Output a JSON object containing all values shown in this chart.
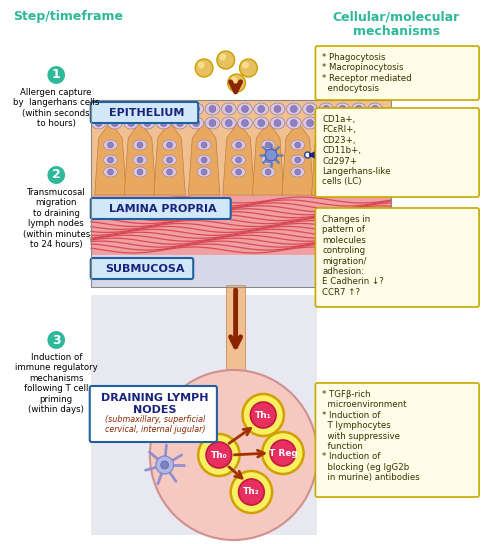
{
  "title_left": "Step/timeframe",
  "title_right": "Cellular/molecular\nmechanisms",
  "title_color": "#2EB89A",
  "bg_color": "#FFFFFF",
  "arrow_color": "#8B2500",
  "blue_arrow_color": "#1A237E",
  "step_circle_color": "#2EB89A",
  "box_bg": "#FFFDE7",
  "box_border": "#C8A800",
  "label_epithelium": "EPITHELIUM",
  "label_lamina": "LAMINA PROPRIA",
  "label_submucosa": "SUBMUCOSA",
  "label_draining": "DRAINING LYMPH\nNODES",
  "label_draining_sub": "(submaxillary, superficial\ncervical, internal jugular)",
  "step1_text": "Allergen capture\nby  langerhans cells\n(within seconds\nto hours)",
  "step2_text": "Transmucosal\nmigration\nto draining\nlymph nodes\n(within minutes\nto 24 hours)",
  "step3_text": "Induction of\nimmune regulatory\nmechanisms\nfollowing T cell\npriming\n(within days)",
  "box1_text": "* Phagocytosis\n* Macropinocytosis\n* Receptor mediated\n  endocytosis",
  "box2_text": "CD1a+,\nFCεRI+,\nCD23+,\nCD11b+,\nCd297+\nLangerhans-like\ncells (LC)",
  "box3_text": "Changes in\npattern of\nmolecules\ncontroling\nmigration/\nadhesion:\nE Cadherin ↓?\nCCR7 ↑?",
  "box4_text": "* TGFβ-rich\n  microenvironment\n* Induction of\n  T lymphocytes\n  with suppressive\n  function\n* Induction of\n  blocking (eg IgG2b\n  in murine) antibodies"
}
